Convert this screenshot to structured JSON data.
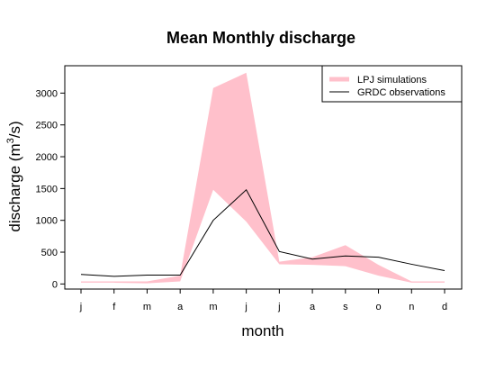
{
  "chart_data": {
    "type": "area",
    "title": "Mean Monthly discharge",
    "xlabel": "month",
    "ylabel": "discharge (m",
    "ylabel_sup": "3",
    "ylabel_tail": "/s)",
    "categories": [
      "j",
      "f",
      "m",
      "a",
      "m",
      "j",
      "j",
      "a",
      "s",
      "o",
      "n",
      "d"
    ],
    "ylim": [
      -80,
      3430
    ],
    "yticks": [
      0,
      500,
      1000,
      1500,
      2000,
      2500,
      3000
    ],
    "legend_position": "top-right",
    "series": [
      {
        "name": "LPJ simulations",
        "kind": "range",
        "color": "#ffc0cb",
        "upper": [
          40,
          40,
          40,
          130,
          3080,
          3320,
          350,
          420,
          610,
          300,
          40,
          40
        ],
        "lower": [
          20,
          20,
          10,
          40,
          1480,
          980,
          310,
          300,
          280,
          130,
          20,
          20
        ]
      },
      {
        "name": "GRDC observations",
        "kind": "line",
        "color": "#000000",
        "values": [
          150,
          120,
          140,
          140,
          1000,
          1480,
          510,
          390,
          440,
          420,
          310,
          210
        ]
      }
    ]
  }
}
